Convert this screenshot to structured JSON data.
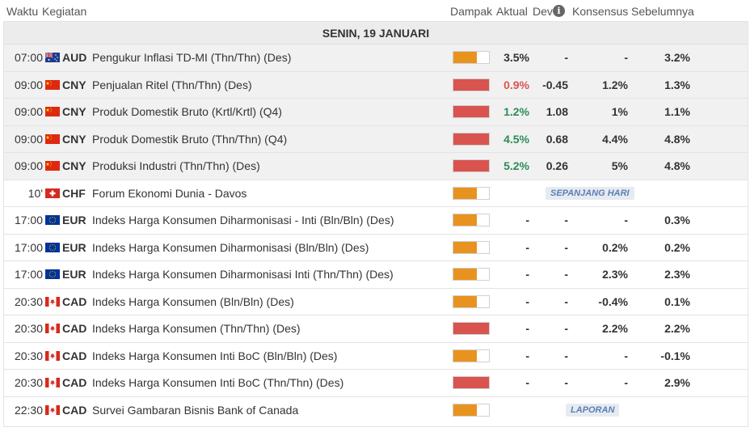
{
  "header": {
    "time": "Waktu",
    "event": "Kegiatan",
    "impact": "Dampak",
    "actual": "Aktual",
    "dev": "Dev",
    "info_icon": "info-icon",
    "consensus": "Konsensus",
    "previous": "Sebelumnya"
  },
  "date_label": "SENIN, 19 JANUARI",
  "colors": {
    "impact_high": "#d9534f",
    "impact_medium": "#e8931f",
    "actual_negative": "#d9534f",
    "actual_positive": "#2e8b57",
    "badge_text": "#5b7fb0"
  },
  "rows": [
    {
      "time": "07:00",
      "flag": "au-flag-icon",
      "currency": "AUD",
      "event": "Pengukur Inflasi TD-MI (Thn/Thn) (Des)",
      "impact": "medium",
      "actual": "3.5%",
      "actual_color": "neutral",
      "dev": "-",
      "consensus": "-",
      "previous": "3.2%",
      "released": true
    },
    {
      "time": "09:00",
      "flag": "cn-flag-icon",
      "currency": "CNY",
      "event": "Penjualan Ritel (Thn/Thn) (Des)",
      "impact": "high",
      "actual": "0.9%",
      "actual_color": "negative",
      "dev": "-0.45",
      "consensus": "1.2%",
      "previous": "1.3%",
      "released": true
    },
    {
      "time": "09:00",
      "flag": "cn-flag-icon",
      "currency": "CNY",
      "event": "Produk Domestik Bruto (Krtl/Krtl) (Q4)",
      "impact": "high",
      "actual": "1.2%",
      "actual_color": "positive",
      "dev": "1.08",
      "consensus": "1%",
      "previous": "1.1%",
      "released": true
    },
    {
      "time": "09:00",
      "flag": "cn-flag-icon",
      "currency": "CNY",
      "event": "Produk Domestik Bruto (Thn/Thn) (Q4)",
      "impact": "high",
      "actual": "4.5%",
      "actual_color": "positive",
      "dev": "0.68",
      "consensus": "4.4%",
      "previous": "4.8%",
      "released": true
    },
    {
      "time": "09:00",
      "flag": "cn-flag-icon",
      "currency": "CNY",
      "event": "Produksi Industri (Thn/Thn) (Des)",
      "impact": "high",
      "actual": "5.2%",
      "actual_color": "positive",
      "dev": "0.26",
      "consensus": "5%",
      "previous": "4.8%",
      "released": true
    },
    {
      "time": "10'",
      "flag": "ch-flag-icon",
      "currency": "CHF",
      "event": "Forum Ekonomi Dunia - Davos",
      "impact": "medium",
      "badge": "SEPANJANG HARI",
      "released": false
    },
    {
      "time": "17:00",
      "flag": "eu-flag-icon",
      "currency": "EUR",
      "event": "Indeks Harga Konsumen Diharmonisasi - Inti (Bln/Bln) (Des)",
      "impact": "medium",
      "actual": "-",
      "dev": "-",
      "consensus": "-",
      "previous": "0.3%",
      "released": false
    },
    {
      "time": "17:00",
      "flag": "eu-flag-icon",
      "currency": "EUR",
      "event": "Indeks Harga Konsumen Diharmonisasi (Bln/Bln) (Des)",
      "impact": "medium",
      "actual": "-",
      "dev": "-",
      "consensus": "0.2%",
      "previous": "0.2%",
      "released": false
    },
    {
      "time": "17:00",
      "flag": "eu-flag-icon",
      "currency": "EUR",
      "event": "Indeks Harga Konsumen Diharmonisasi Inti (Thn/Thn) (Des)",
      "impact": "medium",
      "actual": "-",
      "dev": "-",
      "consensus": "2.3%",
      "previous": "2.3%",
      "released": false
    },
    {
      "time": "20:30",
      "flag": "ca-flag-icon",
      "currency": "CAD",
      "event": "Indeks Harga Konsumen (Bln/Bln) (Des)",
      "impact": "medium",
      "actual": "-",
      "dev": "-",
      "consensus": "-0.4%",
      "previous": "0.1%",
      "released": false
    },
    {
      "time": "20:30",
      "flag": "ca-flag-icon",
      "currency": "CAD",
      "event": "Indeks Harga Konsumen (Thn/Thn) (Des)",
      "impact": "high",
      "actual": "-",
      "dev": "-",
      "consensus": "2.2%",
      "previous": "2.2%",
      "released": false
    },
    {
      "time": "20:30",
      "flag": "ca-flag-icon",
      "currency": "CAD",
      "event": "Indeks Harga Konsumen Inti BoC (Bln/Bln) (Des)",
      "impact": "medium",
      "actual": "-",
      "dev": "-",
      "consensus": "-",
      "previous": "-0.1%",
      "released": false
    },
    {
      "time": "20:30",
      "flag": "ca-flag-icon",
      "currency": "CAD",
      "event": "Indeks Harga Konsumen Inti BoC (Thn/Thn) (Des)",
      "impact": "high",
      "actual": "-",
      "dev": "-",
      "consensus": "-",
      "previous": "2.9%",
      "released": false
    },
    {
      "time": "22:30",
      "flag": "ca-flag-icon",
      "currency": "CAD",
      "event": "Survei Gambaran Bisnis Bank of Canada",
      "impact": "medium",
      "badge": "LAPORAN",
      "released": false
    }
  ]
}
